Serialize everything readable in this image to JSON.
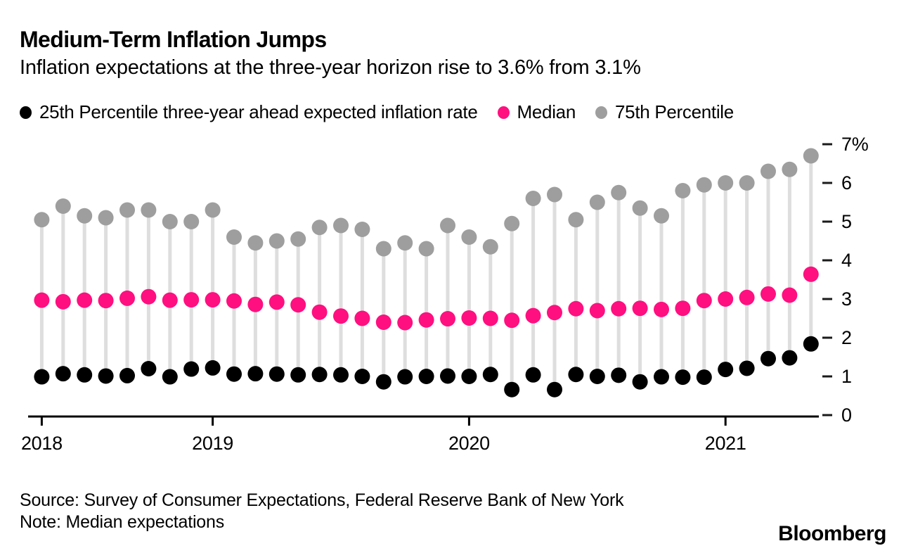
{
  "header": {
    "title": "Medium-Term Inflation Jumps",
    "subtitle": "Inflation expectations at the three-year horizon rise to 3.6% from 3.1%"
  },
  "legend": {
    "items": [
      {
        "label": "25th Percentile three-year ahead expected inflation rate",
        "color": "#000000"
      },
      {
        "label": "Median",
        "color": "#ff0f80"
      },
      {
        "label": "75th Percentile",
        "color": "#9e9e9e"
      }
    ]
  },
  "chart_data": {
    "type": "scatter",
    "subtype": "lollipop",
    "title": "Medium-Term Inflation Jumps",
    "xlabel": "",
    "ylabel": "",
    "grid": false,
    "legend_position": "top",
    "stem_color": "#dedede",
    "axis_color": "#000000",
    "x_months": [
      "May 2018",
      "Jun 2018",
      "Jul 2018",
      "Aug 2018",
      "Sep 2018",
      "Oct 2018",
      "Nov 2018",
      "Dec 2018",
      "Jan 2019",
      "Feb 2019",
      "Mar 2019",
      "Apr 2019",
      "May 2019",
      "Jun 2019",
      "Jul 2019",
      "Aug 2019",
      "Sep 2019",
      "Oct 2019",
      "Nov 2019",
      "Dec 2019",
      "Jan 2020",
      "Feb 2020",
      "Mar 2020",
      "Apr 2020",
      "May 2020",
      "Jun 2020",
      "Jul 2020",
      "Aug 2020",
      "Sep 2020",
      "Oct 2020",
      "Nov 2020",
      "Dec 2020",
      "Jan 2021",
      "Feb 2021",
      "Mar 2021",
      "Apr 2021",
      "May 2021"
    ],
    "x_axis": {
      "year_ticks": [
        {
          "label": "2018",
          "month_index": 0
        },
        {
          "label": "2019",
          "month_index": 8
        },
        {
          "label": "2020",
          "month_index": 20
        },
        {
          "label": "2021",
          "month_index": 32
        }
      ]
    },
    "y_axis": {
      "side": "right",
      "min": 0,
      "max": 7,
      "tick_values": [
        7,
        6,
        5,
        4,
        3,
        2,
        1,
        0
      ],
      "tick_labels": [
        "7%",
        "6",
        "5",
        "4",
        "3",
        "2",
        "1",
        "0"
      ]
    },
    "series": [
      {
        "name": "25th Percentile three-year ahead expected inflation rate",
        "color": "#000000",
        "values": [
          0.99,
          1.07,
          1.04,
          1.01,
          1.02,
          1.2,
          0.99,
          1.19,
          1.22,
          1.06,
          1.07,
          1.06,
          1.04,
          1.05,
          1.04,
          1.0,
          0.86,
          0.99,
          1.0,
          1.01,
          1.0,
          1.05,
          0.66,
          1.04,
          0.66,
          1.05,
          1.0,
          1.03,
          0.86,
          0.99,
          0.98,
          0.98,
          1.18,
          1.21,
          1.46,
          1.48,
          1.84
        ]
      },
      {
        "name": "Median",
        "color": "#ff0f80",
        "values": [
          2.97,
          2.93,
          2.97,
          2.96,
          3.02,
          3.06,
          2.97,
          2.98,
          2.98,
          2.95,
          2.86,
          2.92,
          2.85,
          2.66,
          2.56,
          2.5,
          2.4,
          2.39,
          2.46,
          2.49,
          2.51,
          2.5,
          2.45,
          2.57,
          2.65,
          2.75,
          2.7,
          2.75,
          2.76,
          2.73,
          2.76,
          2.96,
          3.0,
          3.04,
          3.13,
          3.1,
          3.64
        ]
      },
      {
        "name": "75th Percentile",
        "color": "#9e9e9e",
        "values": [
          5.05,
          5.4,
          5.15,
          5.1,
          5.3,
          5.3,
          5.0,
          5.0,
          5.3,
          4.6,
          4.45,
          4.5,
          4.55,
          4.85,
          4.9,
          4.8,
          4.3,
          4.45,
          4.3,
          4.9,
          4.6,
          4.35,
          4.95,
          5.6,
          5.7,
          5.05,
          5.5,
          5.75,
          5.35,
          5.15,
          5.8,
          5.95,
          6.0,
          6.0,
          6.3,
          6.35,
          6.7
        ]
      }
    ]
  },
  "footer": {
    "source_line": "Source: Survey of Consumer Expectations, Federal Reserve Bank of New York",
    "note_line": "Note: Median expectations",
    "brand": "Bloomberg"
  }
}
